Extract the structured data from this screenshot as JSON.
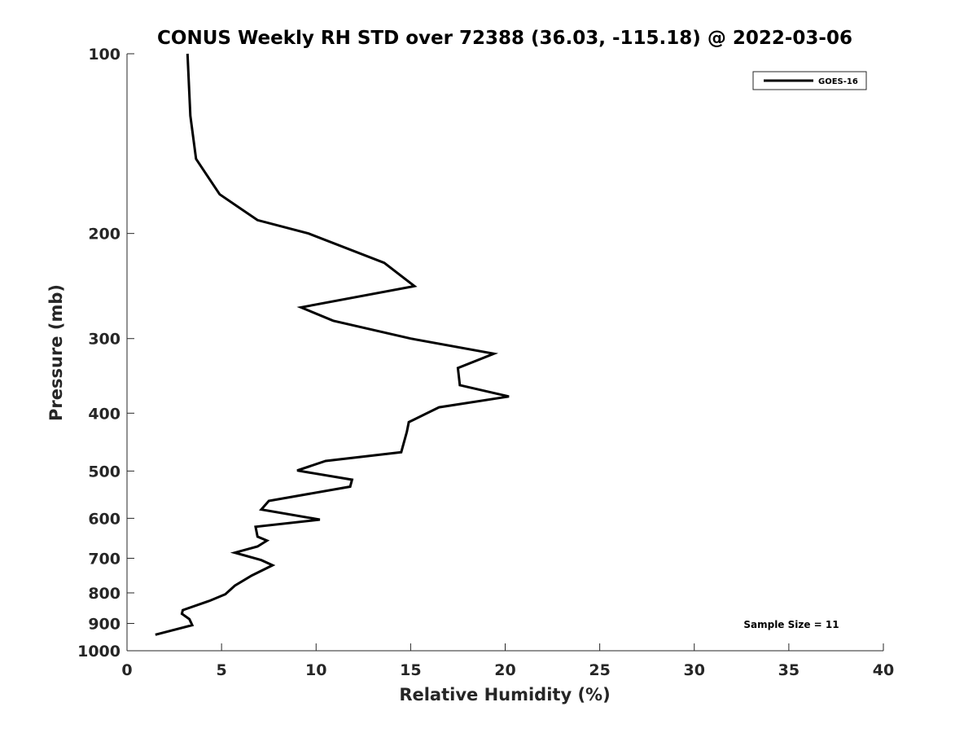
{
  "chart_data": {
    "type": "line",
    "title": "CONUS Weekly RH STD over 72388 (36.03, -115.18) @ 2022-03-06",
    "xlabel": "Relative Humidity (%)",
    "ylabel": "Pressure (mb)",
    "xlim": [
      0,
      40
    ],
    "ylim": [
      100,
      1000
    ],
    "y_scale": "log",
    "y_reversed": true,
    "x_ticks": [
      "0",
      "5",
      "10",
      "15",
      "20",
      "25",
      "30",
      "35",
      "40"
    ],
    "y_ticks": [
      "100",
      "200",
      "300",
      "400",
      "500",
      "600",
      "700",
      "800",
      "900",
      "1000"
    ],
    "grid": false,
    "legend_position": "top-right",
    "annotation": "Sample Size = 11",
    "line_color": "#000000",
    "series": [
      {
        "name": "GOES-16",
        "x": [
          3.2,
          3.35,
          3.65,
          4.9,
          6.9,
          9.6,
          13.6,
          15.2,
          9.2,
          10.9,
          15.0,
          19.4,
          17.5,
          17.6,
          20.2,
          16.5,
          14.9,
          14.8,
          14.5,
          10.5,
          9.0,
          11.9,
          11.8,
          7.5,
          7.1,
          10.2,
          6.8,
          6.9,
          7.4,
          6.9,
          5.7,
          7.1,
          7.7,
          6.6,
          5.7,
          5.2,
          4.4,
          2.95,
          2.9,
          3.3,
          3.45,
          1.5
        ],
        "y": [
          100,
          127,
          150,
          172,
          190,
          200,
          224,
          245,
          266,
          280,
          300,
          318,
          336,
          359,
          375,
          391,
          414,
          430,
          465,
          481,
          499,
          517,
          531,
          561,
          580,
          603,
          620,
          644,
          654,
          669,
          685,
          705,
          719,
          748,
          778,
          804,
          824,
          855,
          867,
          885,
          906,
          940
        ]
      }
    ]
  }
}
